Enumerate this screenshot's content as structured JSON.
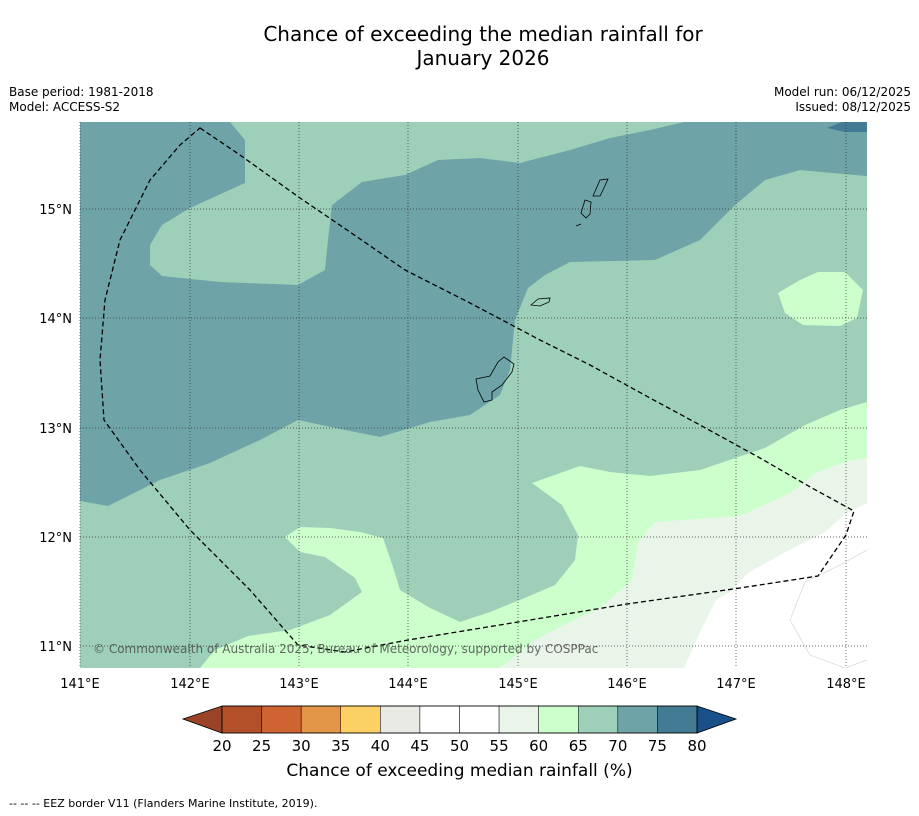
{
  "title_line1": "Chance of exceeding the median rainfall for",
  "title_line2": "January 2026",
  "base_period": "Base period: 1981-2018",
  "model": "Model: ACCESS-S2",
  "model_run": "Model run: 06/12/2025",
  "issued": "Issued: 08/12/2025",
  "copyright": "© Commonwealth of Australia 2025, Bureau of Meteorology, supported by COSPPac",
  "footer_note": "--  --  -- EEZ border V11 (Flanders Marine Institute, 2019).",
  "colors": {
    "c65_70": "#9ed0b9",
    "c70_75": "#6ea4a8",
    "c75_80": "#447b94",
    "c60_65": "#ccffcc",
    "c55_60": "#eaf5ea",
    "c50_55": "#ffffff"
  },
  "map": {
    "lon_labels": [
      "141°E",
      "142°E",
      "143°E",
      "144°E",
      "145°E",
      "146°E",
      "147°E",
      "148°E"
    ],
    "lat_labels": [
      "15°N",
      "14°N",
      "13°N",
      "12°N",
      "11°N"
    ]
  },
  "colorbar": {
    "title": "Chance of exceeding median rainfall (%)",
    "ticks": [
      "20",
      "25",
      "30",
      "35",
      "40",
      "45",
      "50",
      "55",
      "60",
      "65",
      "70",
      "75",
      "80"
    ],
    "colors": [
      "#b2502a",
      "#cd6432",
      "#e39647",
      "#fdd066",
      "#eaeae4",
      "#ffffff",
      "#ffffff",
      "#eaf5ea",
      "#ccffcc",
      "#9ed0b9",
      "#6ea4a8",
      "#447b94"
    ],
    "under_color": "#9b4326",
    "over_color": "#19508a"
  }
}
